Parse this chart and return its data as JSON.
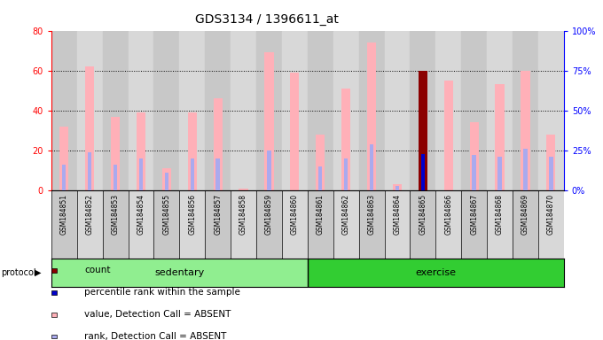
{
  "title": "GDS3134 / 1396611_at",
  "samples": [
    "GSM184851",
    "GSM184852",
    "GSM184853",
    "GSM184854",
    "GSM184855",
    "GSM184856",
    "GSM184857",
    "GSM184858",
    "GSM184859",
    "GSM184860",
    "GSM184861",
    "GSM184862",
    "GSM184863",
    "GSM184864",
    "GSM184865",
    "GSM184866",
    "GSM184867",
    "GSM184868",
    "GSM184869",
    "GSM184870"
  ],
  "value_absent": [
    32,
    62,
    37,
    39,
    11,
    39,
    46,
    1,
    69,
    59,
    28,
    51,
    74,
    3,
    0,
    55,
    34,
    53,
    60,
    28
  ],
  "rank_absent": [
    16,
    24,
    16,
    20,
    11,
    20,
    20,
    0,
    25,
    0,
    15,
    20,
    29,
    3,
    0,
    0,
    22,
    21,
    26,
    21
  ],
  "count": [
    0,
    0,
    0,
    0,
    0,
    0,
    0,
    0,
    0,
    0,
    0,
    0,
    0,
    0,
    60,
    0,
    0,
    0,
    0,
    0
  ],
  "percentile": [
    0,
    0,
    0,
    0,
    0,
    0,
    0,
    0,
    0,
    0,
    0,
    0,
    0,
    0,
    23,
    0,
    0,
    0,
    0,
    0
  ],
  "sedentary_count": 10,
  "exercise_count": 10,
  "ylim_left": [
    0,
    80
  ],
  "ylim_right": [
    0,
    100
  ],
  "yticks_left": [
    0,
    20,
    40,
    60,
    80
  ],
  "yticks_right": [
    0,
    25,
    50,
    75,
    100
  ],
  "ytick_labels_right": [
    "0%",
    "25%",
    "50%",
    "75%",
    "100%"
  ],
  "color_value_absent": "#FFB0B8",
  "color_rank_absent": "#AAAAEE",
  "color_count": "#8B0000",
  "color_percentile": "#0000CC",
  "color_bg_sedentary": "#90EE90",
  "color_bg_exercise": "#32CD32",
  "color_col_even": "#C8C8C8",
  "color_col_odd": "#D8D8D8"
}
